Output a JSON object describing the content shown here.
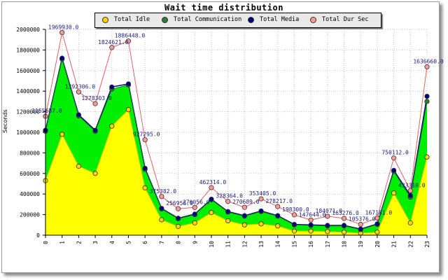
{
  "chart_data": {
    "type": "area",
    "title": "Wait time distribution",
    "xlabel": "",
    "ylabel": "Seconds",
    "categories": [
      "0",
      "1",
      "2",
      "3",
      "4",
      "5",
      "6",
      "7",
      "8",
      "9",
      "10",
      "11",
      "12",
      "13",
      "14",
      "15",
      "16",
      "17",
      "18",
      "19",
      "20",
      "21",
      "22",
      "23"
    ],
    "ylim": [
      0,
      2000000
    ],
    "yticks": [
      "0",
      "200000",
      "400000",
      "600000",
      "800000",
      "1000000",
      "1200000",
      "1400000",
      "1600000",
      "1800000",
      "2000000"
    ],
    "grid": true,
    "legend": "top-center",
    "series": [
      {
        "name": "Total Idle",
        "kind": "area",
        "color": "#ffff00",
        "marker": "#ffd400",
        "values": [
          530000,
          980000,
          670000,
          600000,
          1060000,
          1220000,
          460000,
          150000,
          85000,
          120000,
          220000,
          140000,
          100000,
          110000,
          90000,
          40000,
          40000,
          35000,
          30000,
          20000,
          30000,
          410000,
          120000,
          760000
        ]
      },
      {
        "name": "Total Communication",
        "kind": "area",
        "color": "#00ee00",
        "marker": "#2e7d32",
        "values": [
          1010000,
          1710000,
          1160000,
          1010000,
          1420000,
          1460000,
          640000,
          255000,
          160000,
          200000,
          345000,
          225000,
          185000,
          230000,
          185000,
          100000,
          95000,
          90000,
          90000,
          55000,
          105000,
          620000,
          370000,
          1300000
        ]
      },
      {
        "name": "Total Media",
        "kind": "line",
        "color": "#000080",
        "marker": "#000080",
        "values": [
          1020000,
          1720000,
          1170000,
          1020000,
          1440000,
          1470000,
          650000,
          260000,
          165000,
          205000,
          350000,
          230000,
          190000,
          235000,
          190000,
          105000,
          100000,
          95000,
          95000,
          60000,
          110000,
          630000,
          385000,
          1350000
        ]
      },
      {
        "name": "Total Dur Sec",
        "kind": "line",
        "color": "#e06060",
        "marker": "#ff9999",
        "values": [
          1155687,
          1969930,
          1392306,
          1278303,
          1824621,
          1886448,
          927295,
          375382,
          256956,
          270056,
          462314,
          328364,
          270689,
          353405,
          278217,
          198300,
          147644,
          184071,
          163276,
          105376,
          167181,
          750112,
          433310,
          1636660
        ],
        "labels": [
          "1155687.0",
          "1969930.0",
          "1392306.0",
          "1278303.0",
          "1824621.0",
          "1886448.0",
          "927295.0",
          "375382.0",
          "256956.0",
          "270056.0",
          "462314.0",
          "328364.0",
          "270689.0",
          "353405.0",
          "278217.0",
          "198300.0",
          "147644.0",
          "184071.0",
          "163276.0",
          "105376.0",
          "167181.0",
          "750112.0",
          "433310.0",
          "1636660.0"
        ]
      }
    ]
  }
}
